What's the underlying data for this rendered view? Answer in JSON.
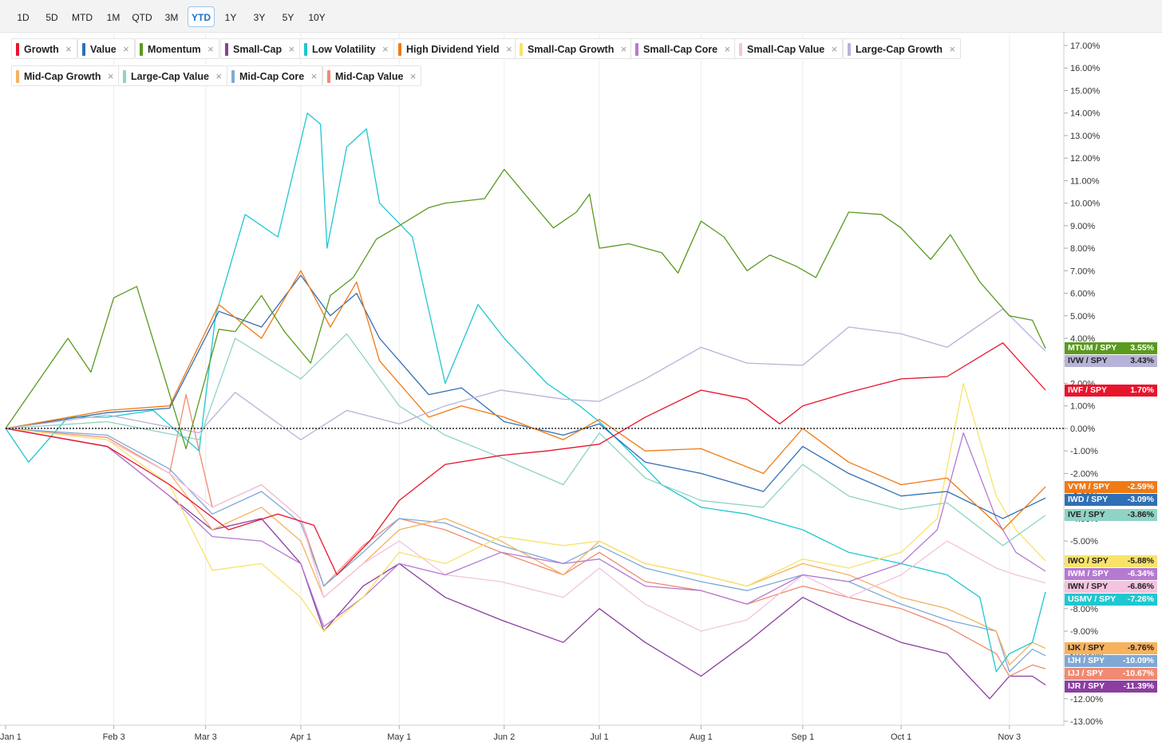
{
  "toolbar": {
    "ranges": [
      "1D",
      "5D",
      "MTD",
      "1M",
      "QTD",
      "3M",
      "YTD",
      "1Y",
      "3Y",
      "5Y",
      "10Y"
    ],
    "active": "YTD"
  },
  "legend": [
    {
      "label": "Growth",
      "color": "#e8142c"
    },
    {
      "label": "Value",
      "color": "#2f6fb5"
    },
    {
      "label": "Momentum",
      "color": "#5a9a1f"
    },
    {
      "label": "Small-Cap",
      "color": "#8b3ea0"
    },
    {
      "label": "Low Volatility",
      "color": "#1fc7cf"
    },
    {
      "label": "High Dividend Yield",
      "color": "#f07a14"
    },
    {
      "label": "Small-Cap Growth",
      "color": "#f8e36a"
    },
    {
      "label": "Small-Cap Core",
      "color": "#b57ad0"
    },
    {
      "label": "Small-Cap Value",
      "color": "#f3c3df"
    },
    {
      "label": "Large-Cap Growth",
      "color": "#b7b3d8"
    },
    {
      "label": "Mid-Cap Growth",
      "color": "#f6b25f"
    },
    {
      "label": "Large-Cap Value",
      "color": "#8fd3c6"
    },
    {
      "label": "Mid-Cap Core",
      "color": "#7ea9d6"
    },
    {
      "label": "Mid-Cap Value",
      "color": "#f08a72"
    }
  ],
  "chart_data": {
    "type": "line",
    "ylim": [
      -13,
      17
    ],
    "y_ticks": [
      "17.00%",
      "16.00%",
      "15.00%",
      "14.00%",
      "13.00%",
      "12.00%",
      "11.00%",
      "10.00%",
      "9.00%",
      "8.00%",
      "7.00%",
      "6.00%",
      "5.00%",
      "4.00%",
      "3.00%",
      "2.00%",
      "1.00%",
      "0.00%",
      "-1.00%",
      "-2.00%",
      "-3.00%",
      "-4.00%",
      "-5.00%",
      "-6.00%",
      "-7.00%",
      "-8.00%",
      "-9.00%",
      "-10.00%",
      "-11.00%",
      "-12.00%",
      "-13.00%"
    ],
    "x_tick_labels": [
      "Jan 1",
      "Feb 3",
      "Mar 3",
      "Apr 1",
      "May 1",
      "Jun 2",
      "Jul 1",
      "Aug 1",
      "Sep 1",
      "Oct 1",
      "Nov 3"
    ],
    "x_tick_dates": [
      "2025-01-01",
      "2025-02-03",
      "2025-03-03",
      "2025-04-01",
      "2025-05-01",
      "2025-06-02",
      "2025-07-01",
      "2025-08-01",
      "2025-09-01",
      "2025-10-01",
      "2025-11-03"
    ],
    "zero_line": true,
    "series": [
      {
        "name": "Momentum",
        "ticker": "MTUM / SPY",
        "final": "3.55%",
        "color": "#5a9a1f",
        "badge_text_dark": false,
        "dates": [
          "2025-01-01",
          "2025-01-20",
          "2025-01-27",
          "2025-02-03",
          "2025-02-10",
          "2025-02-19",
          "2025-02-25",
          "2025-03-07",
          "2025-03-12",
          "2025-03-20",
          "2025-03-27",
          "2025-04-04",
          "2025-04-10",
          "2025-04-17",
          "2025-04-24",
          "2025-05-01",
          "2025-05-10",
          "2025-05-15",
          "2025-05-27",
          "2025-06-02",
          "2025-06-10",
          "2025-06-17",
          "2025-06-24",
          "2025-06-28",
          "2025-07-01",
          "2025-07-10",
          "2025-07-20",
          "2025-07-25",
          "2025-08-01",
          "2025-08-08",
          "2025-08-15",
          "2025-08-22",
          "2025-08-30",
          "2025-09-05",
          "2025-09-15",
          "2025-09-25",
          "2025-10-01",
          "2025-10-10",
          "2025-10-16",
          "2025-10-25",
          "2025-11-03",
          "2025-11-10",
          "2025-11-14"
        ],
        "values": [
          0.0,
          4.0,
          2.5,
          5.8,
          6.3,
          2.0,
          -0.9,
          4.4,
          4.3,
          5.9,
          4.3,
          2.9,
          5.9,
          6.7,
          8.4,
          9.0,
          9.8,
          10.0,
          10.2,
          11.5,
          10.1,
          8.9,
          9.6,
          10.4,
          8.0,
          8.2,
          7.8,
          6.9,
          9.2,
          8.5,
          7.0,
          7.7,
          7.2,
          6.7,
          9.6,
          9.5,
          8.9,
          7.5,
          8.6,
          6.5,
          5.0,
          4.8,
          3.55
        ]
      },
      {
        "name": "Large-Cap Growth",
        "ticker": "IVW / SPY",
        "final": "3.43%",
        "color": "#b7b3d8",
        "badge_text_dark": true,
        "dates": [
          "2025-01-01",
          "2025-02-01",
          "2025-03-01",
          "2025-03-12",
          "2025-04-01",
          "2025-04-15",
          "2025-05-01",
          "2025-05-15",
          "2025-06-01",
          "2025-06-20",
          "2025-07-01",
          "2025-07-15",
          "2025-08-01",
          "2025-08-15",
          "2025-09-01",
          "2025-09-15",
          "2025-10-01",
          "2025-10-15",
          "2025-11-01",
          "2025-11-14"
        ],
        "values": [
          0.0,
          0.6,
          -0.2,
          1.6,
          -0.5,
          0.8,
          0.2,
          1.0,
          1.7,
          1.3,
          1.2,
          2.2,
          3.6,
          2.9,
          2.8,
          4.5,
          4.2,
          3.6,
          5.3,
          3.43
        ]
      },
      {
        "name": "Growth",
        "ticker": "IWF / SPY",
        "final": "1.70%",
        "color": "#e8142c",
        "badge_text_dark": false,
        "dates": [
          "2025-01-01",
          "2025-02-01",
          "2025-02-20",
          "2025-03-10",
          "2025-03-25",
          "2025-04-05",
          "2025-04-12",
          "2025-04-22",
          "2025-05-01",
          "2025-05-15",
          "2025-06-01",
          "2025-06-15",
          "2025-07-01",
          "2025-07-15",
          "2025-08-01",
          "2025-08-15",
          "2025-08-25",
          "2025-09-01",
          "2025-09-15",
          "2025-10-01",
          "2025-10-15",
          "2025-11-01",
          "2025-11-14"
        ],
        "values": [
          0.0,
          -0.8,
          -2.5,
          -4.5,
          -3.8,
          -4.3,
          -6.5,
          -5.0,
          -3.2,
          -1.6,
          -1.2,
          -1.0,
          -0.7,
          0.5,
          1.7,
          1.3,
          0.2,
          1.0,
          1.6,
          2.2,
          2.3,
          3.8,
          1.7
        ]
      },
      {
        "name": "High Dividend Yield",
        "ticker": "VYM / SPY",
        "final": "-2.59%",
        "color": "#f07a14",
        "badge_text_dark": false,
        "dates": [
          "2025-01-01",
          "2025-02-01",
          "2025-02-20",
          "2025-03-07",
          "2025-03-20",
          "2025-04-01",
          "2025-04-10",
          "2025-04-18",
          "2025-04-25",
          "2025-05-10",
          "2025-05-20",
          "2025-06-02",
          "2025-06-20",
          "2025-07-01",
          "2025-07-15",
          "2025-08-01",
          "2025-08-20",
          "2025-09-01",
          "2025-09-15",
          "2025-10-01",
          "2025-10-15",
          "2025-11-01",
          "2025-11-14"
        ],
        "values": [
          0.0,
          0.8,
          1.0,
          5.5,
          4.0,
          7.0,
          4.5,
          6.5,
          3.0,
          0.5,
          1.0,
          0.5,
          -0.5,
          0.4,
          -1.0,
          -0.9,
          -2.0,
          0.0,
          -1.5,
          -2.5,
          -2.2,
          -4.5,
          -2.59
        ]
      },
      {
        "name": "Value",
        "ticker": "IWD / SPY",
        "final": "-3.09%",
        "color": "#2f6fb5",
        "badge_text_dark": false,
        "dates": [
          "2025-01-01",
          "2025-02-01",
          "2025-02-20",
          "2025-03-07",
          "2025-03-20",
          "2025-04-01",
          "2025-04-10",
          "2025-04-18",
          "2025-04-25",
          "2025-05-10",
          "2025-05-20",
          "2025-06-02",
          "2025-06-20",
          "2025-07-01",
          "2025-07-15",
          "2025-08-01",
          "2025-08-20",
          "2025-09-01",
          "2025-09-15",
          "2025-10-01",
          "2025-10-15",
          "2025-11-01",
          "2025-11-14"
        ],
        "values": [
          0.0,
          0.7,
          0.9,
          5.2,
          4.5,
          6.8,
          5.0,
          6.0,
          4.0,
          1.5,
          1.8,
          0.3,
          -0.3,
          0.2,
          -1.5,
          -2.0,
          -2.8,
          -0.8,
          -2.0,
          -3.0,
          -2.8,
          -4.0,
          -3.09
        ]
      },
      {
        "name": "Large-Cap Value",
        "ticker": "IVE / SPY",
        "final": "-3.86%",
        "color": "#8fd3c6",
        "badge_text_dark": true,
        "dates": [
          "2025-01-01",
          "2025-02-01",
          "2025-03-01",
          "2025-03-12",
          "2025-04-01",
          "2025-04-15",
          "2025-05-01",
          "2025-05-15",
          "2025-06-01",
          "2025-06-20",
          "2025-07-01",
          "2025-07-15",
          "2025-08-01",
          "2025-08-20",
          "2025-09-01",
          "2025-09-15",
          "2025-10-01",
          "2025-10-15",
          "2025-11-01",
          "2025-11-14"
        ],
        "values": [
          0.0,
          0.3,
          -0.5,
          4.0,
          2.2,
          4.2,
          1.0,
          -0.3,
          -1.3,
          -2.5,
          -0.2,
          -2.2,
          -3.2,
          -3.5,
          -1.6,
          -3.0,
          -3.6,
          -3.3,
          -5.2,
          -3.86
        ]
      },
      {
        "name": "Small-Cap Growth",
        "ticker": "IWO / SPY",
        "final": "-5.88%",
        "color": "#f8e36a",
        "badge_text_dark": true,
        "dates": [
          "2025-01-01",
          "2025-02-01",
          "2025-02-20",
          "2025-03-05",
          "2025-03-20",
          "2025-04-01",
          "2025-04-08",
          "2025-04-20",
          "2025-05-01",
          "2025-05-15",
          "2025-06-01",
          "2025-06-20",
          "2025-07-01",
          "2025-07-15",
          "2025-08-01",
          "2025-08-15",
          "2025-09-01",
          "2025-09-15",
          "2025-10-01",
          "2025-10-12",
          "2025-10-20",
          "2025-10-30",
          "2025-11-05",
          "2025-11-14"
        ],
        "values": [
          0.0,
          -0.5,
          -2.5,
          -6.3,
          -6.0,
          -7.5,
          -9.0,
          -7.5,
          -5.5,
          -6.0,
          -4.8,
          -5.2,
          -5.0,
          -6.0,
          -6.5,
          -7.0,
          -5.8,
          -6.2,
          -5.5,
          -4.0,
          2.0,
          -3.0,
          -4.5,
          -5.88
        ]
      },
      {
        "name": "Small-Cap Core",
        "ticker": "IWM / SPY",
        "final": "-6.34%",
        "color": "#b57ad0",
        "badge_text_dark": false,
        "dates": [
          "2025-01-01",
          "2025-02-01",
          "2025-02-20",
          "2025-03-05",
          "2025-03-20",
          "2025-04-01",
          "2025-04-08",
          "2025-04-20",
          "2025-05-01",
          "2025-05-15",
          "2025-06-01",
          "2025-06-20",
          "2025-07-01",
          "2025-07-15",
          "2025-08-01",
          "2025-08-15",
          "2025-09-01",
          "2025-09-15",
          "2025-10-01",
          "2025-10-12",
          "2025-10-20",
          "2025-10-30",
          "2025-11-05",
          "2025-11-14"
        ],
        "values": [
          0.0,
          -0.8,
          -3.0,
          -4.8,
          -5.0,
          -6.0,
          -8.8,
          -7.5,
          -6.0,
          -6.5,
          -5.5,
          -6.0,
          -5.8,
          -7.0,
          -7.2,
          -7.8,
          -6.5,
          -6.8,
          -6.0,
          -4.5,
          -0.2,
          -4.0,
          -5.5,
          -6.34
        ]
      },
      {
        "name": "Small-Cap Value",
        "ticker": "IWN / SPY",
        "final": "-6.86%",
        "color": "#f3c3df",
        "badge_text_dark": true,
        "dates": [
          "2025-01-01",
          "2025-02-01",
          "2025-02-20",
          "2025-03-05",
          "2025-03-20",
          "2025-04-01",
          "2025-04-08",
          "2025-04-20",
          "2025-05-01",
          "2025-05-15",
          "2025-06-01",
          "2025-06-20",
          "2025-07-01",
          "2025-07-15",
          "2025-08-01",
          "2025-08-15",
          "2025-09-01",
          "2025-09-15",
          "2025-10-01",
          "2025-10-15",
          "2025-10-30",
          "2025-11-05",
          "2025-11-14"
        ],
        "values": [
          0.0,
          -0.5,
          -2.0,
          -3.5,
          -2.5,
          -4.0,
          -7.5,
          -6.0,
          -5.0,
          -6.5,
          -6.8,
          -7.5,
          -6.2,
          -7.8,
          -9.0,
          -8.5,
          -6.5,
          -7.5,
          -6.5,
          -5.0,
          -6.2,
          -6.5,
          -6.86
        ]
      },
      {
        "name": "Low Volatility",
        "ticker": "USMV / SPY",
        "final": "-7.26%",
        "color": "#1fc7cf",
        "badge_text_dark": false,
        "dates": [
          "2025-01-01",
          "2025-01-08",
          "2025-01-20",
          "2025-02-01",
          "2025-02-15",
          "2025-03-01",
          "2025-03-06",
          "2025-03-15",
          "2025-03-25",
          "2025-04-03",
          "2025-04-07",
          "2025-04-09",
          "2025-04-15",
          "2025-04-21",
          "2025-04-25",
          "2025-05-05",
          "2025-05-15",
          "2025-05-25",
          "2025-06-02",
          "2025-06-15",
          "2025-06-25",
          "2025-07-01",
          "2025-07-10",
          "2025-07-20",
          "2025-08-01",
          "2025-08-15",
          "2025-09-01",
          "2025-09-15",
          "2025-10-01",
          "2025-10-15",
          "2025-10-25",
          "2025-10-30",
          "2025-11-03",
          "2025-11-10",
          "2025-11-14"
        ],
        "values": [
          0.0,
          -1.5,
          0.5,
          0.5,
          0.8,
          -1.0,
          5.0,
          9.5,
          8.5,
          14.0,
          13.5,
          8.0,
          12.5,
          13.3,
          10.0,
          8.5,
          2.0,
          5.5,
          4.0,
          2.0,
          1.0,
          0.3,
          -1.0,
          -2.5,
          -3.5,
          -3.8,
          -4.5,
          -5.5,
          -6.0,
          -6.5,
          -7.5,
          -10.8,
          -10.0,
          -9.5,
          -7.26
        ]
      },
      {
        "name": "Mid-Cap Growth",
        "ticker": "IJK / SPY",
        "final": "-9.76%",
        "color": "#f6b25f",
        "badge_text_dark": true,
        "dates": [
          "2025-01-01",
          "2025-02-01",
          "2025-02-20",
          "2025-03-05",
          "2025-03-20",
          "2025-04-01",
          "2025-04-08",
          "2025-04-20",
          "2025-05-01",
          "2025-05-15",
          "2025-06-01",
          "2025-06-20",
          "2025-07-01",
          "2025-07-15",
          "2025-08-01",
          "2025-08-15",
          "2025-09-01",
          "2025-09-15",
          "2025-10-01",
          "2025-10-15",
          "2025-10-30",
          "2025-11-03",
          "2025-11-10",
          "2025-11-14"
        ],
        "values": [
          0.0,
          -0.5,
          -2.0,
          -4.5,
          -3.5,
          -5.0,
          -7.5,
          -6.0,
          -4.5,
          -4.0,
          -5.0,
          -6.5,
          -5.0,
          -6.0,
          -6.5,
          -7.0,
          -6.0,
          -6.5,
          -7.5,
          -8.0,
          -9.0,
          -10.5,
          -9.5,
          -9.76
        ]
      },
      {
        "name": "Mid-Cap Core",
        "ticker": "IJH / SPY",
        "final": "-10.09%",
        "color": "#7ea9d6",
        "badge_text_dark": false,
        "dates": [
          "2025-01-01",
          "2025-02-01",
          "2025-02-20",
          "2025-03-05",
          "2025-03-20",
          "2025-04-01",
          "2025-04-08",
          "2025-04-20",
          "2025-05-01",
          "2025-05-15",
          "2025-06-01",
          "2025-06-20",
          "2025-07-01",
          "2025-07-15",
          "2025-08-01",
          "2025-08-15",
          "2025-09-01",
          "2025-09-15",
          "2025-10-01",
          "2025-10-15",
          "2025-10-30",
          "2025-11-03",
          "2025-11-10",
          "2025-11-14"
        ],
        "values": [
          0.0,
          -0.3,
          -1.8,
          -3.8,
          -2.8,
          -4.2,
          -7.0,
          -5.5,
          -4.0,
          -4.2,
          -5.2,
          -6.0,
          -5.2,
          -6.2,
          -6.8,
          -7.2,
          -6.5,
          -6.8,
          -7.8,
          -8.5,
          -9.0,
          -10.8,
          -9.8,
          -10.09
        ]
      },
      {
        "name": "Mid-Cap Value",
        "ticker": "IJJ / SPY",
        "final": "-10.67%",
        "color": "#f08a72",
        "badge_text_dark": false,
        "dates": [
          "2025-01-01",
          "2025-02-01",
          "2025-02-20",
          "2025-02-25",
          "2025-03-05",
          "2025-03-20",
          "2025-04-01",
          "2025-04-08",
          "2025-04-20",
          "2025-05-01",
          "2025-05-15",
          "2025-06-01",
          "2025-06-20",
          "2025-07-01",
          "2025-07-15",
          "2025-08-01",
          "2025-08-15",
          "2025-09-01",
          "2025-09-15",
          "2025-10-01",
          "2025-10-15",
          "2025-10-30",
          "2025-11-03",
          "2025-11-10",
          "2025-11-14"
        ],
        "values": [
          0.0,
          -0.4,
          -2.0,
          1.5,
          -3.5,
          -2.5,
          -4.0,
          -7.0,
          -5.2,
          -4.0,
          -4.5,
          -5.5,
          -6.5,
          -5.5,
          -6.8,
          -7.2,
          -7.8,
          -7.0,
          -7.5,
          -8.0,
          -8.8,
          -10.0,
          -11.0,
          -10.5,
          -10.67
        ]
      },
      {
        "name": "Small-Cap",
        "ticker": "IJR / SPY",
        "final": "-11.39%",
        "color": "#8b3ea0",
        "badge_text_dark": false,
        "dates": [
          "2025-01-01",
          "2025-02-01",
          "2025-02-20",
          "2025-03-05",
          "2025-03-20",
          "2025-04-01",
          "2025-04-08",
          "2025-04-20",
          "2025-05-01",
          "2025-05-15",
          "2025-06-01",
          "2025-06-20",
          "2025-07-01",
          "2025-07-15",
          "2025-08-01",
          "2025-08-15",
          "2025-09-01",
          "2025-09-15",
          "2025-10-01",
          "2025-10-15",
          "2025-10-28",
          "2025-11-03",
          "2025-11-10",
          "2025-11-14"
        ],
        "values": [
          0.0,
          -0.8,
          -3.0,
          -4.5,
          -4.0,
          -6.0,
          -9.0,
          -7.0,
          -6.0,
          -7.5,
          -8.5,
          -9.5,
          -8.0,
          -9.5,
          -11.0,
          -9.5,
          -7.5,
          -8.5,
          -9.5,
          -10.0,
          -12.0,
          -11.0,
          -11.0,
          -11.39
        ]
      }
    ]
  }
}
